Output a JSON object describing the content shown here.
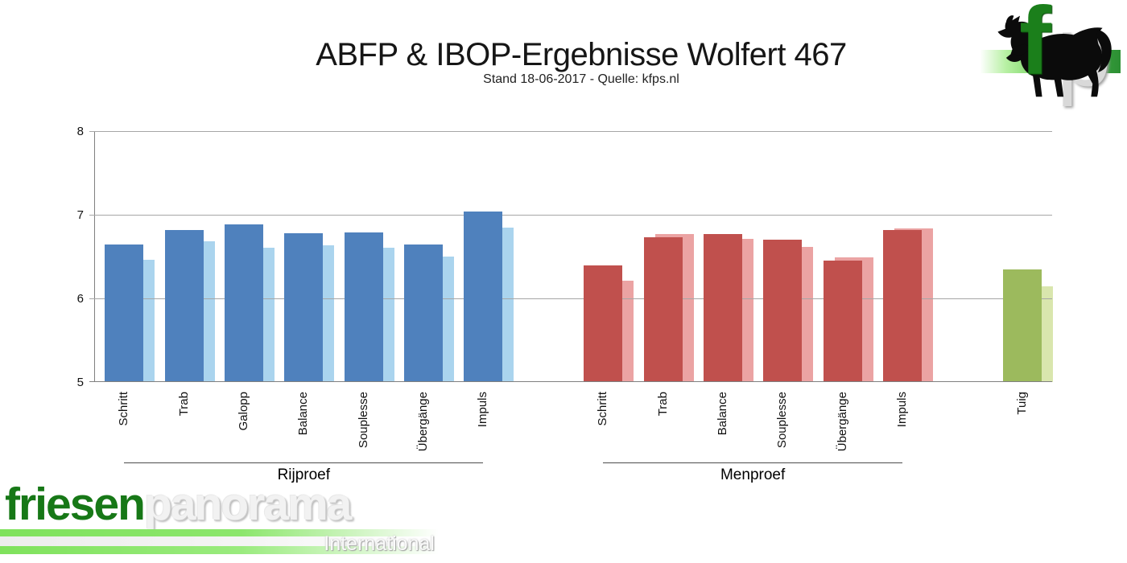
{
  "header": {
    "title": "ABFP & IBOP-Ergebnisse Wolfert 467",
    "subtitle": "Stand 18-06-2017 - Quelle: kfps.nl"
  },
  "logo": {
    "letter_f": "f",
    "letter_p": "p",
    "horse_icon": "black-friesian-horse-silhouette"
  },
  "watermark": {
    "part_green": "friesen",
    "part_gray": "panorama",
    "subline": "International"
  },
  "colors": {
    "gridline": "#a6a6a6",
    "axis": "#808080",
    "title_text": "#161616"
  },
  "chart_data": {
    "type": "bar",
    "title": "ABFP & IBOP-Ergebnisse Wolfert 467",
    "subtitle": "Stand 18-06-2017 - Quelle: kfps.nl",
    "ylabel": "",
    "xlabel": "",
    "ylim": [
      5,
      8
    ],
    "yticks": [
      5,
      6,
      7,
      8
    ],
    "grid": true,
    "legend": "none",
    "layout": {
      "total_slots": 16,
      "slot_starts": [
        0,
        8,
        15
      ]
    },
    "groups": [
      {
        "label": "Rijproef",
        "underline": true,
        "colors": {
          "dark": "#4f81bd",
          "light": "#aad4ee"
        },
        "categories": [
          "Schritt",
          "Trab",
          "Galopp",
          "Balance",
          "Souplesse",
          "Übergänge",
          "Impuls"
        ],
        "series": [
          {
            "name": "dark",
            "values": [
              6.64,
              6.82,
              6.88,
              6.78,
              6.79,
              6.64,
              7.04
            ]
          },
          {
            "name": "light",
            "values": [
              6.46,
              6.68,
              6.61,
              6.63,
              6.61,
              6.5,
              6.85
            ]
          }
        ]
      },
      {
        "label": "Menproef",
        "underline": true,
        "colors": {
          "dark": "#c0504d",
          "light": "#eba3a3"
        },
        "categories": [
          "Schritt",
          "Trab",
          "Balance",
          "Souplesse",
          "Übergänge",
          "Impuls"
        ],
        "series": [
          {
            "name": "dark",
            "values": [
              6.39,
              6.73,
              6.77,
              6.7,
              6.45,
              6.82
            ]
          },
          {
            "name": "light",
            "values": [
              6.21,
              6.77,
              6.71,
              6.62,
              6.49,
              6.84
            ]
          }
        ]
      },
      {
        "label": "",
        "underline": false,
        "colors": {
          "dark": "#9cba5d",
          "light": "#d9e6ae"
        },
        "categories": [
          "Tuig"
        ],
        "series": [
          {
            "name": "dark",
            "values": [
              6.35
            ]
          },
          {
            "name": "light",
            "values": [
              6.14
            ]
          }
        ]
      }
    ]
  }
}
